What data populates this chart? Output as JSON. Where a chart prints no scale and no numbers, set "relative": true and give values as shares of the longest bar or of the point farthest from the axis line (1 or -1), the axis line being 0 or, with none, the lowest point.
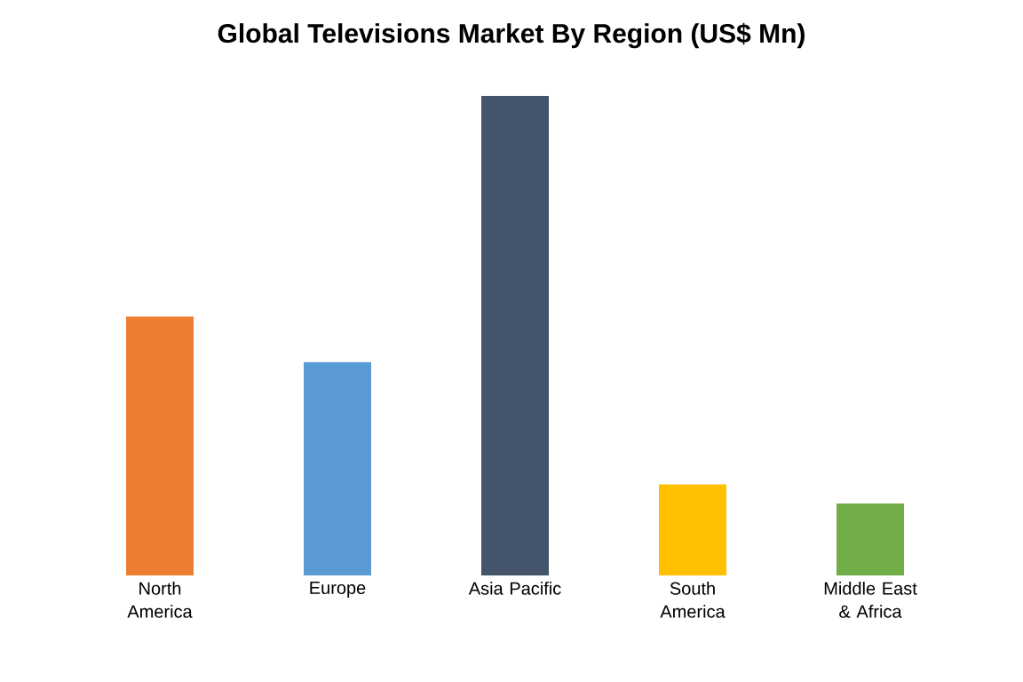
{
  "chart_data": {
    "type": "bar",
    "title": "Global Televisions Market By Region (US$ Mn)",
    "relative": true,
    "categories": [
      "North America",
      "Europe",
      "Asia Pacific",
      "South America",
      "Middle East & Africa"
    ],
    "values": [
      0.54,
      0.445,
      1,
      0.19,
      0.15
    ],
    "colors": [
      "#ed7d31",
      "#5b9bd5",
      "#44546a",
      "#ffc000",
      "#70ad47"
    ]
  }
}
